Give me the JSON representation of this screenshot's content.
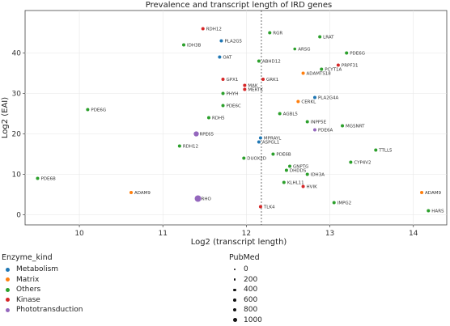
{
  "chart_data": {
    "type": "scatter",
    "title": "Prevalence and transcript length of IRD genes",
    "xlabel": "Log2 (transcript length)",
    "ylabel": "Log2 (EAI)",
    "xlim": [
      9.35,
      14.4
    ],
    "ylim": [
      -2.5,
      50.5
    ],
    "xticks": [
      10,
      11,
      12,
      13,
      14
    ],
    "yticks": [
      0,
      10,
      20,
      30,
      40
    ],
    "vline": 12.18,
    "grid": true,
    "colors": {
      "Metabolism": "#1f77b4",
      "Matrix": "#ff7f0e",
      "Others": "#2ca02c",
      "Kinase": "#d62728",
      "Phototransduction": "#9467bd"
    },
    "points": [
      {
        "label": "RDH12",
        "x": 11.48,
        "y": 46.0,
        "kind": "Kinase",
        "pubmed": 50
      },
      {
        "label": "RGR",
        "x": 12.28,
        "y": 45.0,
        "kind": "Others",
        "pubmed": 50
      },
      {
        "label": "PLA2G5",
        "x": 11.7,
        "y": 43.0,
        "kind": "Metabolism",
        "pubmed": 50
      },
      {
        "label": "LRAT",
        "x": 12.88,
        "y": 44.0,
        "kind": "Others",
        "pubmed": 50
      },
      {
        "label": "IDH3B",
        "x": 11.25,
        "y": 42.0,
        "kind": "Others",
        "pubmed": 50
      },
      {
        "label": "ARSG",
        "x": 12.58,
        "y": 41.0,
        "kind": "Others",
        "pubmed": 30
      },
      {
        "label": "OAT",
        "x": 11.68,
        "y": 39.0,
        "kind": "Metabolism",
        "pubmed": 50
      },
      {
        "label": "PDE6G",
        "x": 13.2,
        "y": 40.0,
        "kind": "Others",
        "pubmed": 50
      },
      {
        "label": "ABHD12",
        "x": 12.15,
        "y": 38.0,
        "kind": "Others",
        "pubmed": 50
      },
      {
        "label": "PRPF31",
        "x": 13.1,
        "y": 37.0,
        "kind": "Kinase",
        "pubmed": 50
      },
      {
        "label": "PCYT1A",
        "x": 12.9,
        "y": 36.0,
        "kind": "Others",
        "pubmed": 50
      },
      {
        "label": "ADAMTS18",
        "x": 12.68,
        "y": 35.0,
        "kind": "Matrix",
        "pubmed": 50
      },
      {
        "label": "GPX1",
        "x": 11.72,
        "y": 33.5,
        "kind": "Kinase",
        "pubmed": 50
      },
      {
        "label": "GRK1",
        "x": 12.2,
        "y": 33.5,
        "kind": "Kinase",
        "pubmed": 50
      },
      {
        "label": "MAK",
        "x": 11.98,
        "y": 32.0,
        "kind": "Kinase",
        "pubmed": 50
      },
      {
        "label": "MERTK",
        "x": 11.98,
        "y": 31.0,
        "kind": "Kinase",
        "pubmed": 50
      },
      {
        "label": "PHYH",
        "x": 11.72,
        "y": 30.0,
        "kind": "Others",
        "pubmed": 50
      },
      {
        "label": "PLA2G4A",
        "x": 12.82,
        "y": 29.0,
        "kind": "Metabolism",
        "pubmed": 50
      },
      {
        "label": "CERKL",
        "x": 12.62,
        "y": 28.0,
        "kind": "Matrix",
        "pubmed": 50
      },
      {
        "label": "PDE6C",
        "x": 11.72,
        "y": 27.0,
        "kind": "Others",
        "pubmed": 50
      },
      {
        "label": "PDE6G",
        "x": 10.1,
        "y": 26.0,
        "kind": "Others",
        "pubmed": 50
      },
      {
        "label": "AGBL5",
        "x": 12.4,
        "y": 25.0,
        "kind": "Others",
        "pubmed": 50
      },
      {
        "label": "RDH5",
        "x": 11.55,
        "y": 24.0,
        "kind": "Others",
        "pubmed": 50
      },
      {
        "label": "INPP5E",
        "x": 12.73,
        "y": 23.0,
        "kind": "Others",
        "pubmed": 50
      },
      {
        "label": "MGSNRT",
        "x": 13.15,
        "y": 22.0,
        "kind": "Others",
        "pubmed": 50
      },
      {
        "label": "PDE6A",
        "x": 12.82,
        "y": 21.0,
        "kind": "Phototransduction",
        "pubmed": 50
      },
      {
        "label": "RPE65",
        "x": 11.4,
        "y": 20.0,
        "kind": "Phototransduction",
        "pubmed": 250
      },
      {
        "label": "MPRAYL",
        "x": 12.17,
        "y": 19.0,
        "kind": "Metabolism",
        "pubmed": 50
      },
      {
        "label": "ASPGL1",
        "x": 12.15,
        "y": 18.0,
        "kind": "Metabolism",
        "pubmed": 50
      },
      {
        "label": "RDH12",
        "x": 11.2,
        "y": 17.0,
        "kind": "Others",
        "pubmed": 50
      },
      {
        "label": "TTLL5",
        "x": 13.55,
        "y": 16.0,
        "kind": "Others",
        "pubmed": 50
      },
      {
        "label": "PDE6B",
        "x": 12.32,
        "y": 15.0,
        "kind": "Others",
        "pubmed": 50
      },
      {
        "label": "DUOX2D",
        "x": 11.97,
        "y": 14.0,
        "kind": "Others",
        "pubmed": 50
      },
      {
        "label": "CYP4V2",
        "x": 13.25,
        "y": 13.0,
        "kind": "Others",
        "pubmed": 50
      },
      {
        "label": "GNPTG",
        "x": 12.52,
        "y": 12.0,
        "kind": "Others",
        "pubmed": 50
      },
      {
        "label": "DHDDS",
        "x": 12.48,
        "y": 11.0,
        "kind": "Others",
        "pubmed": 50
      },
      {
        "label": "IDH3A",
        "x": 12.73,
        "y": 10.0,
        "kind": "Others",
        "pubmed": 50
      },
      {
        "label": "PDE6B",
        "x": 9.5,
        "y": 9.0,
        "kind": "Others",
        "pubmed": 50
      },
      {
        "label": "KLHL11",
        "x": 12.45,
        "y": 8.0,
        "kind": "Others",
        "pubmed": 50
      },
      {
        "label": "IMPG2",
        "x": 13.05,
        "y": 3.0,
        "kind": "Others",
        "pubmed": 50
      },
      {
        "label": "HVIK",
        "x": 12.68,
        "y": 7.0,
        "kind": "Kinase",
        "pubmed": 50
      },
      {
        "label": "ADAM9",
        "x": 10.62,
        "y": 5.5,
        "kind": "Matrix",
        "pubmed": 50
      },
      {
        "label": "ADAM9",
        "x": 14.1,
        "y": 5.5,
        "kind": "Matrix",
        "pubmed": 50
      },
      {
        "label": "RHO",
        "x": 11.42,
        "y": 4.0,
        "kind": "Phototransduction",
        "pubmed": 500
      },
      {
        "label": "TLK4",
        "x": 12.17,
        "y": 2.0,
        "kind": "Kinase",
        "pubmed": 50
      },
      {
        "label": "HARS",
        "x": 14.18,
        "y": 1.0,
        "kind": "Others",
        "pubmed": 50
      }
    ],
    "legend_kind": {
      "title": "Enzyme_kind",
      "items": [
        "Metabolism",
        "Matrix",
        "Others",
        "Kinase",
        "Phototransduction"
      ]
    },
    "legend_size": {
      "title": "PubMed",
      "items": [
        "0",
        "200",
        "400",
        "600",
        "800",
        "1000"
      ],
      "values": [
        0,
        200,
        400,
        600,
        800,
        1000
      ]
    }
  }
}
